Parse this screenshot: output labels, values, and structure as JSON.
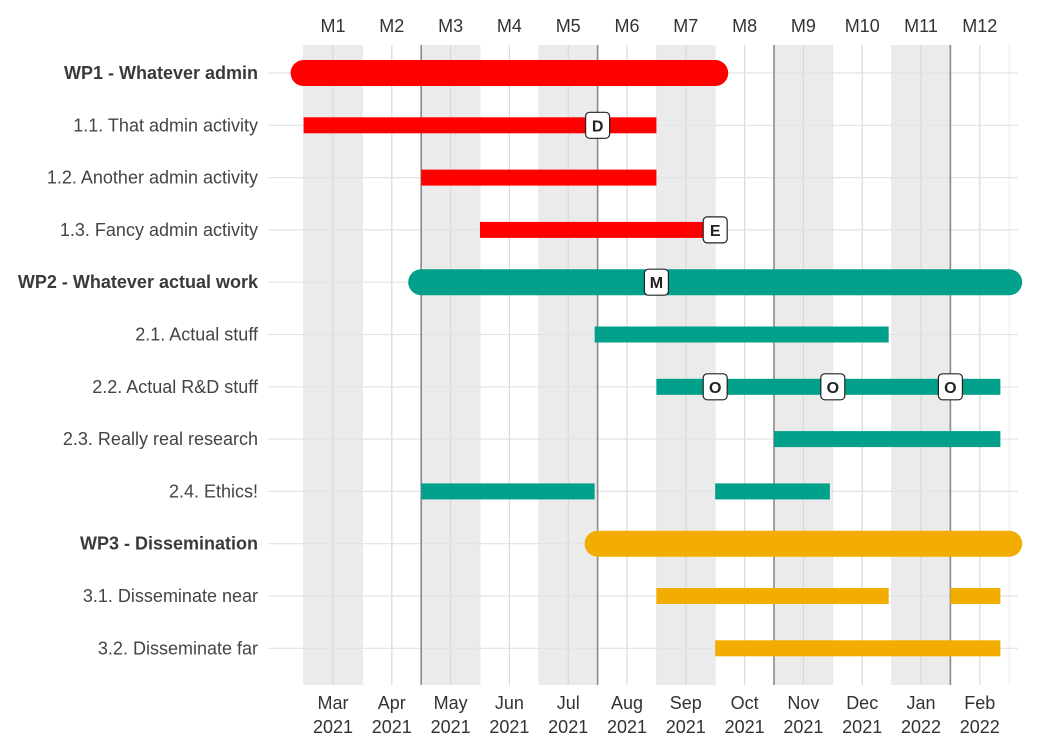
{
  "chart_data": {
    "type": "gantt",
    "title": "",
    "periods_top": [
      "M1",
      "M2",
      "M3",
      "M4",
      "M5",
      "M6",
      "M7",
      "M8",
      "M9",
      "M10",
      "M11",
      "M12"
    ],
    "periods_bottom": [
      {
        "month": "Mar",
        "year": "2021"
      },
      {
        "month": "Apr",
        "year": "2021"
      },
      {
        "month": "May",
        "year": "2021"
      },
      {
        "month": "Jun",
        "year": "2021"
      },
      {
        "month": "Jul",
        "year": "2021"
      },
      {
        "month": "Aug",
        "year": "2021"
      },
      {
        "month": "Sep",
        "year": "2021"
      },
      {
        "month": "Oct",
        "year": "2021"
      },
      {
        "month": "Nov",
        "year": "2021"
      },
      {
        "month": "Dec",
        "year": "2021"
      },
      {
        "month": "Jan",
        "year": "2022"
      },
      {
        "month": "Feb",
        "year": "2022"
      }
    ],
    "colors": {
      "WP1": "#ff0000",
      "WP2": "#00a08a",
      "WP3": "#f2ad00"
    },
    "shaded_months": [
      1,
      3,
      5,
      7,
      9,
      11
    ],
    "quarter_lines_after_month": [
      2,
      5,
      8,
      11
    ],
    "rows": [
      {
        "label": "WP1 - Whatever admin",
        "wp": "WP1",
        "is_wp": true,
        "start": 1,
        "end": 8.0
      },
      {
        "label": "1.1. That admin activity",
        "wp": "WP1",
        "is_wp": false,
        "start": 1,
        "end": 7.0
      },
      {
        "label": "1.2. Another admin activity",
        "wp": "WP1",
        "is_wp": false,
        "start": 3,
        "end": 7.0
      },
      {
        "label": "1.3. Fancy admin activity",
        "wp": "WP1",
        "is_wp": false,
        "start": 4,
        "end": 7.95
      },
      {
        "label": "WP2 - Whatever actual work",
        "wp": "WP2",
        "is_wp": true,
        "start": 3,
        "end": 13.0
      },
      {
        "label": "2.1. Actual stuff",
        "wp": "WP2",
        "is_wp": false,
        "start": 5.95,
        "end": 10.95
      },
      {
        "label": "2.2. Actual R&D stuff",
        "wp": "WP2",
        "is_wp": false,
        "start": 7,
        "end": 12.85
      },
      {
        "label": "2.3. Really real research",
        "wp": "WP2",
        "is_wp": false,
        "start": 9,
        "end": 12.85
      },
      {
        "label": "2.4. Ethics!",
        "wp": "WP2",
        "is_wp": false,
        "segments": [
          [
            3,
            5.95
          ],
          [
            8,
            9.95
          ]
        ]
      },
      {
        "label": "WP3 - Dissemination",
        "wp": "WP3",
        "is_wp": true,
        "start": 6,
        "end": 13.0
      },
      {
        "label": "3.1. Disseminate near",
        "wp": "WP3",
        "is_wp": false,
        "segments": [
          [
            7,
            10.95
          ],
          [
            12,
            12.85
          ]
        ]
      },
      {
        "label": "3.2. Disseminate far",
        "wp": "WP3",
        "is_wp": false,
        "start": 8,
        "end": 12.85
      }
    ],
    "milestones": [
      {
        "row": 1,
        "x": 5.5,
        "label": "D"
      },
      {
        "row": 3,
        "x": 7.5,
        "label": "E"
      },
      {
        "row": 4,
        "x": 6.5,
        "label": "M"
      },
      {
        "row": 6,
        "x": 7.5,
        "label": "O"
      },
      {
        "row": 6,
        "x": 9.5,
        "label": "O"
      },
      {
        "row": 6,
        "x": 11.5,
        "label": "O"
      }
    ]
  }
}
